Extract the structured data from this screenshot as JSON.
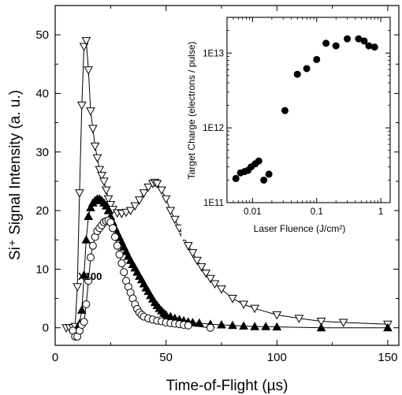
{
  "chart_data": [
    {
      "type": "line",
      "xlabel": "Time-of-Flight (µs)",
      "ylabel": "Si⁺ Signal Intensity (a. u.)",
      "xlim": [
        0,
        155
      ],
      "ylim": [
        -3,
        55
      ],
      "x_ticks": [
        "0",
        "50",
        "100",
        "150"
      ],
      "y_ticks": [
        "0",
        "10",
        "20",
        "30",
        "40",
        "50"
      ],
      "annotation": "X100",
      "series": [
        {
          "marker": "open-triangle-down",
          "points": [
            [
              5,
              0
            ],
            [
              6.5,
              0
            ],
            [
              8,
              0
            ],
            [
              9,
              0.2
            ],
            [
              10,
              7
            ],
            [
              11,
              23
            ],
            [
              12,
              38
            ],
            [
              13,
              48
            ],
            [
              14,
              49
            ],
            [
              15,
              44
            ],
            [
              16,
              37
            ],
            [
              17,
              34
            ],
            [
              18,
              31
            ],
            [
              19,
              29
            ],
            [
              20,
              27
            ],
            [
              21,
              26
            ],
            [
              22,
              25
            ],
            [
              23,
              23.5
            ],
            [
              24,
              22
            ],
            [
              25,
              21
            ],
            [
              26,
              20.2
            ],
            [
              28,
              19.6
            ],
            [
              30,
              19.5
            ],
            [
              32,
              19.7
            ],
            [
              34,
              20
            ],
            [
              36,
              20.8
            ],
            [
              38,
              21.8
            ],
            [
              40,
              23
            ],
            [
              42,
              24
            ],
            [
              44,
              24.6
            ],
            [
              45,
              24.8
            ],
            [
              46,
              24.6
            ],
            [
              48,
              23.5
            ],
            [
              50,
              22
            ],
            [
              52,
              20
            ],
            [
              54,
              18.5
            ],
            [
              56,
              17
            ],
            [
              58,
              15.5
            ],
            [
              60,
              14
            ],
            [
              62,
              12.8
            ],
            [
              64,
              11.5
            ],
            [
              66,
              10.4
            ],
            [
              68,
              9.3
            ],
            [
              70,
              8.4
            ],
            [
              72,
              7.5
            ],
            [
              75,
              6.6
            ],
            [
              80,
              5
            ],
            [
              85,
              4
            ],
            [
              90,
              3.3
            ],
            [
              100,
              2.2
            ],
            [
              110,
              1.6
            ],
            [
              120,
              1.1
            ],
            [
              130,
              0.9
            ],
            [
              150,
              0.6
            ]
          ]
        },
        {
          "marker": "filled-triangle-up",
          "points": [
            [
              10,
              0
            ],
            [
              11,
              0.7
            ],
            [
              12,
              3
            ],
            [
              13,
              9
            ],
            [
              14,
              15
            ],
            [
              15,
              19
            ],
            [
              16,
              20.5
            ],
            [
              17,
              21.3
            ],
            [
              18,
              21.7
            ],
            [
              19,
              22
            ],
            [
              20,
              22
            ],
            [
              21,
              21.7
            ],
            [
              22,
              21.3
            ],
            [
              23,
              20.8
            ],
            [
              24,
              20
            ],
            [
              25,
              19
            ],
            [
              26,
              18
            ],
            [
              27,
              17
            ],
            [
              28,
              16.2
            ],
            [
              29,
              15.4
            ],
            [
              30,
              14.6
            ],
            [
              31,
              13.8
            ],
            [
              32,
              13
            ],
            [
              33,
              12.2
            ],
            [
              34,
              11.5
            ],
            [
              35,
              10.8
            ],
            [
              36,
              10.2
            ],
            [
              37,
              9.5
            ],
            [
              38,
              8.8
            ],
            [
              39,
              8.2
            ],
            [
              40,
              7.5
            ],
            [
              41,
              6.8
            ],
            [
              42,
              6.2
            ],
            [
              43,
              5.5
            ],
            [
              44,
              4.9
            ],
            [
              45,
              4.3
            ],
            [
              46,
              3.8
            ],
            [
              47,
              3.3
            ],
            [
              48,
              2.9
            ],
            [
              49,
              2.5
            ],
            [
              50,
              2.2
            ],
            [
              52,
              1.9
            ],
            [
              54,
              1.6
            ],
            [
              56,
              1.4
            ],
            [
              58,
              1.2
            ],
            [
              60,
              1
            ],
            [
              62,
              0.9
            ],
            [
              65,
              0.8
            ],
            [
              70,
              0.6
            ],
            [
              75,
              0.5
            ],
            [
              80,
              0.4
            ],
            [
              85,
              0.3
            ],
            [
              90,
              0.2
            ],
            [
              95,
              0.2
            ],
            [
              100,
              0.15
            ],
            [
              120,
              0
            ],
            [
              150,
              0
            ]
          ]
        },
        {
          "marker": "open-circle",
          "points": [
            [
              8,
              -0.5
            ],
            [
              9,
              -1.5
            ],
            [
              10,
              -1.5
            ],
            [
              11,
              -0.5
            ],
            [
              12,
              0.5
            ],
            [
              13,
              1
            ],
            [
              14,
              4
            ],
            [
              15,
              8
            ],
            [
              16,
              12
            ],
            [
              17,
              14
            ],
            [
              18,
              15.5
            ],
            [
              19,
              16.5
            ],
            [
              20,
              17
            ],
            [
              21,
              17.5
            ],
            [
              22,
              18
            ],
            [
              23,
              18.2
            ],
            [
              24,
              18.3
            ],
            [
              25,
              18
            ],
            [
              26,
              17
            ],
            [
              27,
              15.5
            ],
            [
              28,
              14
            ],
            [
              29,
              12.5
            ],
            [
              30,
              11
            ],
            [
              31,
              9.5
            ],
            [
              32,
              8
            ],
            [
              33,
              7
            ],
            [
              34,
              6
            ],
            [
              35,
              5
            ],
            [
              36,
              4
            ],
            [
              37,
              3.2
            ],
            [
              38,
              2.6
            ],
            [
              39,
              2.2
            ],
            [
              40,
              1.9
            ],
            [
              42,
              1.6
            ],
            [
              44,
              1.4
            ],
            [
              46,
              1.2
            ],
            [
              48,
              1.1
            ],
            [
              50,
              0.9
            ],
            [
              52,
              0.8
            ],
            [
              54,
              0.7
            ],
            [
              56,
              0.6
            ],
            [
              58,
              0.5
            ],
            [
              60,
              0.4
            ],
            [
              70,
              0
            ]
          ]
        }
      ]
    },
    {
      "type": "scatter",
      "xlabel": "Laser Fluence (J/cm²)",
      "ylabel": "Target Charge (electrons / pulse)",
      "xscale": "log",
      "yscale": "log",
      "xlim": [
        0.004,
        1.4
      ],
      "ylim": [
        100000000000,
        30000000000000
      ],
      "x_ticks": [
        "0.01",
        "0.1",
        "1"
      ],
      "y_ticks": [
        "1E11",
        "1E12",
        "1E13"
      ],
      "points": [
        [
          0.0055,
          210000000000.0
        ],
        [
          0.0065,
          250000000000.0
        ],
        [
          0.0075,
          260000000000.0
        ],
        [
          0.0085,
          270000000000.0
        ],
        [
          0.0095,
          300000000000.0
        ],
        [
          0.011,
          330000000000.0
        ],
        [
          0.0125,
          360000000000.0
        ],
        [
          0.015,
          200000000000.0
        ],
        [
          0.018,
          240000000000.0
        ],
        [
          0.032,
          1700000000000.0
        ],
        [
          0.05,
          5200000000000.0
        ],
        [
          0.07,
          6200000000000.0
        ],
        [
          0.1,
          8200000000000.0
        ],
        [
          0.14,
          13500000000000.0
        ],
        [
          0.2,
          12500000000000.0
        ],
        [
          0.3,
          15500000000000.0
        ],
        [
          0.45,
          15500000000000.0
        ],
        [
          0.55,
          14500000000000.0
        ],
        [
          0.65,
          12500000000000.0
        ],
        [
          0.8,
          12000000000000.0
        ]
      ]
    }
  ]
}
